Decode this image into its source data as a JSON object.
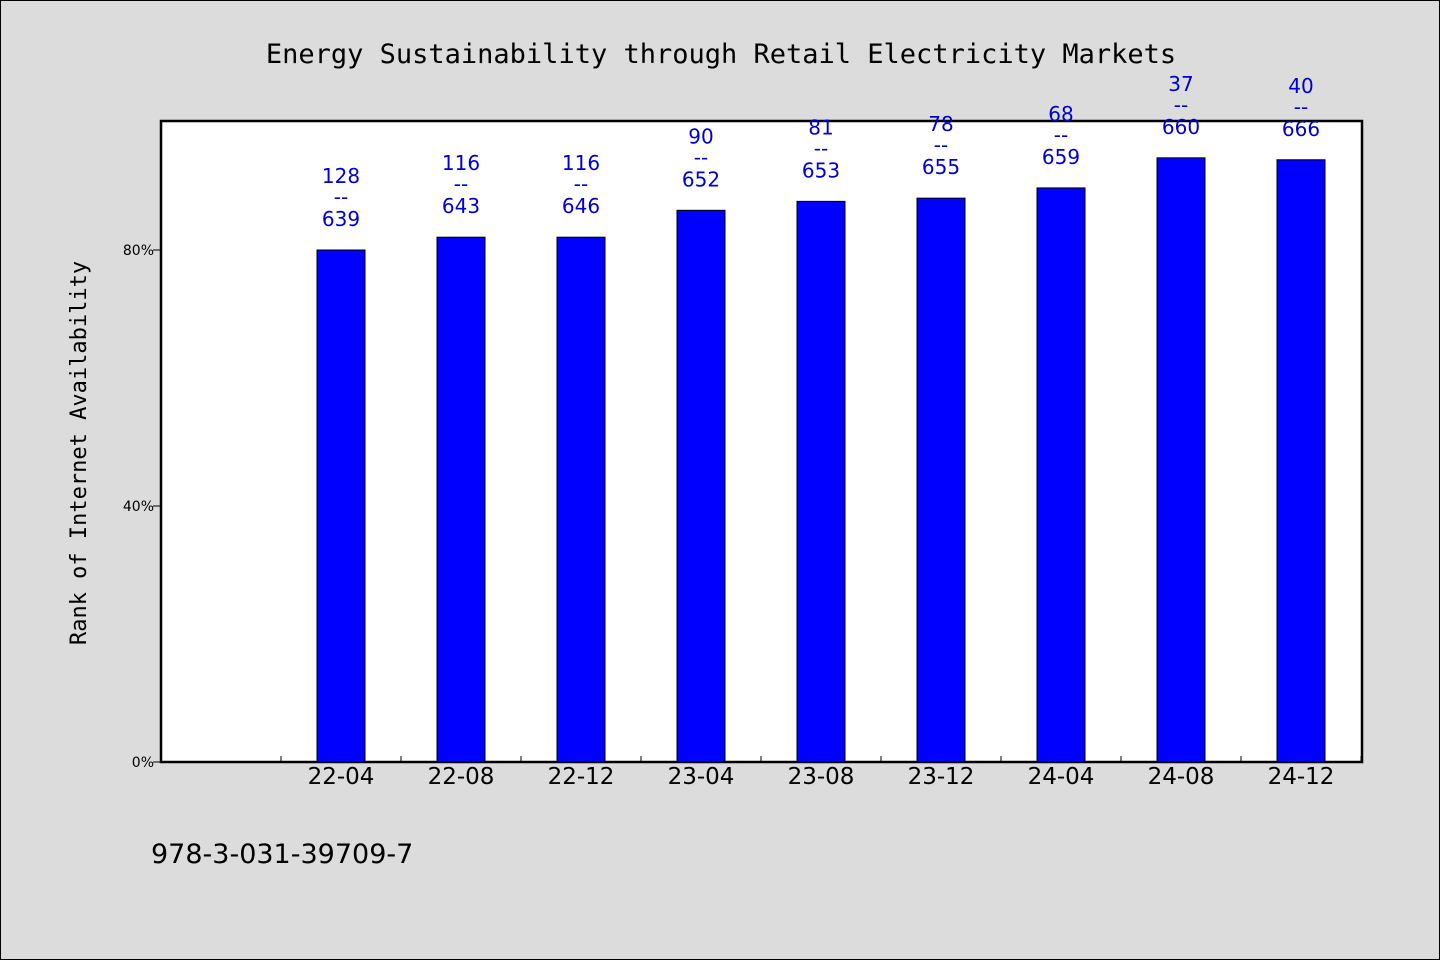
{
  "chart_data": {
    "type": "bar",
    "title": "Energy Sustainability through Retail Electricity Markets",
    "ylabel": "Rank of Internet Availability",
    "xlabel": "",
    "ylim": [
      0,
      100
    ],
    "yticks": [
      0,
      40,
      80
    ],
    "ytick_labels": [
      "0%",
      "40%",
      "80%"
    ],
    "categories": [
      "22-04",
      "22-08",
      "22-12",
      "23-04",
      "23-08",
      "23-12",
      "24-04",
      "24-08",
      "24-12"
    ],
    "values": [
      80.0,
      82.0,
      82.0,
      86.2,
      87.6,
      88.1,
      89.7,
      94.4,
      94.1
    ],
    "rank_labels": [
      "128",
      "116",
      "116",
      "90",
      "81",
      "78",
      "68",
      "37",
      "40"
    ],
    "total_labels": [
      "639",
      "643",
      "646",
      "652",
      "653",
      "655",
      "659",
      "660",
      "666"
    ],
    "label_separator": "--",
    "bar_color": "#0000ff",
    "label_color": "#0000cc",
    "grid": false,
    "legend": "none"
  },
  "footer": {
    "isbn": "978-3-031-39709-7"
  }
}
